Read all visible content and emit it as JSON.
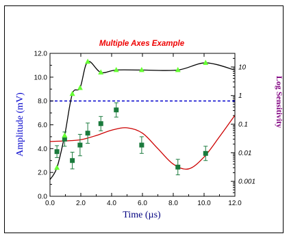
{
  "chart_data": {
    "type": "line",
    "title": "Multiple Axes Example",
    "xlabel": "Time (µs)",
    "ylabel_left": "Amplitude (mV)",
    "ylabel_right": "Log Sensitivity",
    "xlim": [
      0,
      12
    ],
    "ylim_left": [
      0,
      12
    ],
    "ylim_right_log": [
      0.0003,
      30
    ],
    "x_ticks": [
      "0.0",
      "2.0",
      "4.0",
      "6.0",
      "8.0",
      "10.0",
      "12.0"
    ],
    "y_left_ticks": [
      "0.0",
      "2.0",
      "4.0",
      "6.0",
      "8.0",
      "10.0",
      "12.0"
    ],
    "y_right_ticks": [
      "0.001",
      "0.01",
      "0.1",
      "1",
      "10"
    ],
    "threshold": {
      "y": 8.0,
      "color": "#0000cc"
    },
    "series": [
      {
        "kind": "spline-with-markers",
        "color": "#000000",
        "marker_color": "#66ff33",
        "points": [
          [
            0.45,
            2.4
          ],
          [
            0.95,
            5.1
          ],
          [
            1.45,
            8.6
          ],
          [
            1.95,
            9.1
          ],
          [
            2.45,
            11.3
          ],
          [
            3.3,
            10.4
          ],
          [
            4.3,
            10.6
          ],
          [
            5.95,
            10.6
          ],
          [
            8.3,
            10.6
          ],
          [
            10.1,
            11.2
          ]
        ]
      },
      {
        "kind": "markers-with-error-bars",
        "color": "#1a7a3c",
        "points": [
          {
            "x": 0.45,
            "y": 3.75,
            "err": 0.5
          },
          {
            "x": 0.95,
            "y": 4.8,
            "err": 0.6
          },
          {
            "x": 1.45,
            "y": 3.0,
            "err": 0.7
          },
          {
            "x": 1.95,
            "y": 4.3,
            "err": 0.9
          },
          {
            "x": 2.45,
            "y": 5.3,
            "err": 0.85
          },
          {
            "x": 3.3,
            "y": 6.1,
            "err": 0.6
          },
          {
            "x": 4.3,
            "y": 7.25,
            "err": 0.6
          },
          {
            "x": 5.95,
            "y": 4.3,
            "err": 0.7
          },
          {
            "x": 8.3,
            "y": 2.45,
            "err": 0.65
          },
          {
            "x": 10.1,
            "y": 3.6,
            "err": 0.6
          }
        ]
      },
      {
        "kind": "curve",
        "color": "#cc0000",
        "points": [
          [
            0.0,
            4.6
          ],
          [
            1.0,
            4.65
          ],
          [
            2.0,
            4.75
          ],
          [
            3.0,
            5.1
          ],
          [
            4.0,
            5.55
          ],
          [
            5.0,
            5.75
          ],
          [
            6.0,
            5.3
          ],
          [
            7.0,
            4.0
          ],
          [
            8.0,
            2.7
          ],
          [
            9.0,
            2.3
          ],
          [
            10.0,
            3.3
          ],
          [
            11.0,
            5.0
          ],
          [
            12.0,
            6.8
          ]
        ]
      }
    ]
  }
}
